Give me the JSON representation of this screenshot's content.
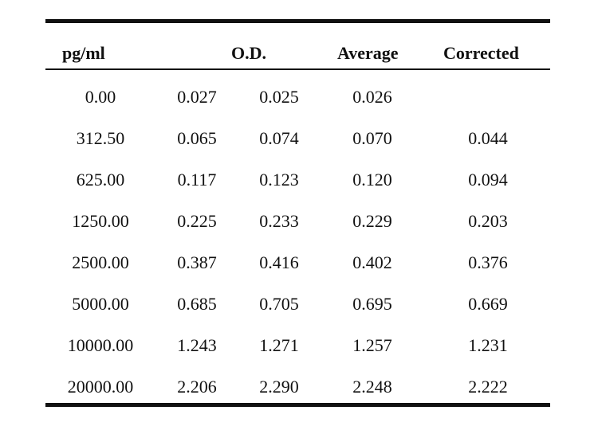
{
  "table": {
    "headers": {
      "concentration": "pg/ml",
      "od": "O.D.",
      "average": "Average",
      "corrected": "Corrected"
    },
    "rows": [
      {
        "conc": "0.00",
        "od1": "0.027",
        "od2": "0.025",
        "avg": "0.026",
        "corr": ""
      },
      {
        "conc": "312.50",
        "od1": "0.065",
        "od2": "0.074",
        "avg": "0.070",
        "corr": "0.044"
      },
      {
        "conc": "625.00",
        "od1": "0.117",
        "od2": "0.123",
        "avg": "0.120",
        "corr": "0.094"
      },
      {
        "conc": "1250.00",
        "od1": "0.225",
        "od2": "0.233",
        "avg": "0.229",
        "corr": "0.203"
      },
      {
        "conc": "2500.00",
        "od1": "0.387",
        "od2": "0.416",
        "avg": "0.402",
        "corr": "0.376"
      },
      {
        "conc": "5000.00",
        "od1": "0.685",
        "od2": "0.705",
        "avg": "0.695",
        "corr": "0.669"
      },
      {
        "conc": "10000.00",
        "od1": "1.243",
        "od2": "1.271",
        "avg": "1.257",
        "corr": "1.231"
      },
      {
        "conc": "20000.00",
        "od1": "2.206",
        "od2": "2.290",
        "avg": "2.248",
        "corr": "2.222"
      }
    ]
  }
}
